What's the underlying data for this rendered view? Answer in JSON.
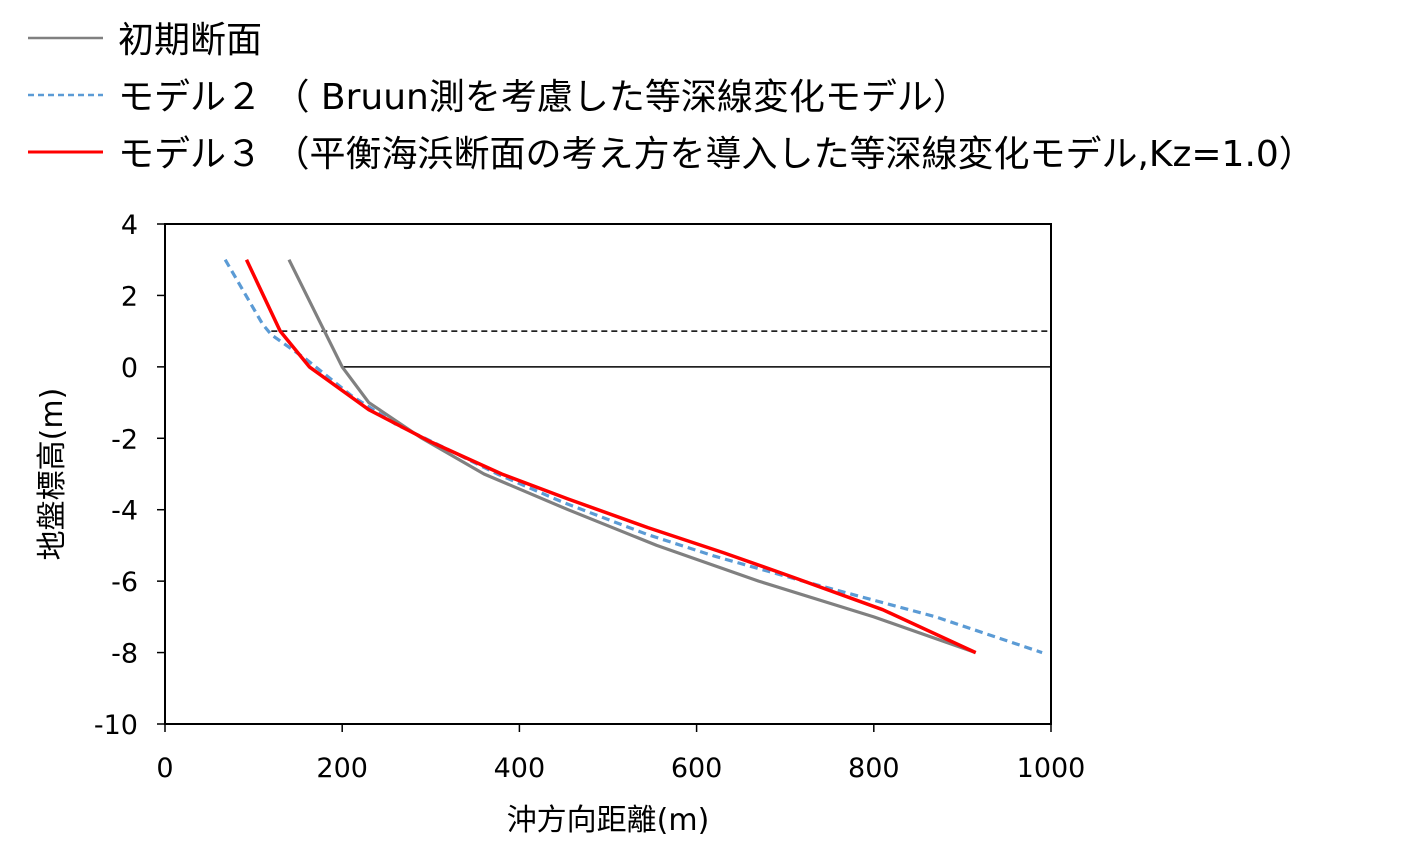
{
  "chart_data": {
    "type": "line",
    "xlabel": "沖方向距離(m)",
    "ylabel": "地盤標高(m)",
    "xlim": [
      0,
      1000
    ],
    "ylim": [
      -10,
      4
    ],
    "x_ticks": [
      "0",
      "200",
      "400",
      "600",
      "800",
      "1000"
    ],
    "y_ticks": [
      "4",
      "2",
      "0",
      "-2",
      "-4",
      "-6",
      "-8",
      "-10"
    ],
    "legend_position": "top-left, above plot",
    "series": [
      {
        "name": "初期断面",
        "color": "#808080",
        "style": "solid",
        "x": [
          140,
          200,
          230,
          290,
          360,
          455,
          555,
          670,
          800,
          915
        ],
        "y": [
          3,
          0,
          -1,
          -2,
          -3,
          -4,
          -5,
          -6,
          -7,
          -8
        ]
      },
      {
        "name": "モデル２ （ Bruun測を考慮した等深線変化モデル）",
        "color": "#5B9BD5",
        "style": "dashed",
        "x": [
          68,
          110,
          120,
          160,
          210,
          260,
          310,
          375,
          450,
          545,
          620,
          720,
          870,
          990
        ],
        "y": [
          3,
          1.2,
          0.9,
          0.2,
          -0.8,
          -1.6,
          -2.2,
          -3,
          -3.8,
          -4.7,
          -5.3,
          -6,
          -7,
          -8
        ]
      },
      {
        "name": "モデル３ （平衡海浜断面の考え方を導入した等深線変化モデル,Kz=1.0）",
        "color": "#FF0000",
        "style": "solid",
        "x": [
          92,
          130,
          163,
          230,
          300,
          380,
          455,
          545,
          630,
          710,
          810,
          915
        ],
        "y": [
          3,
          1,
          0,
          -1.2,
          -2.1,
          -3,
          -3.7,
          -4.5,
          -5.2,
          -5.9,
          -6.8,
          -8
        ]
      }
    ],
    "reference_lines": [
      {
        "y": 1,
        "x_from": 120,
        "x_to": 1000,
        "color": "#000000",
        "style": "dashed"
      },
      {
        "y": 0,
        "x_from": 200,
        "x_to": 1000,
        "color": "#000000",
        "style": "solid"
      }
    ]
  }
}
